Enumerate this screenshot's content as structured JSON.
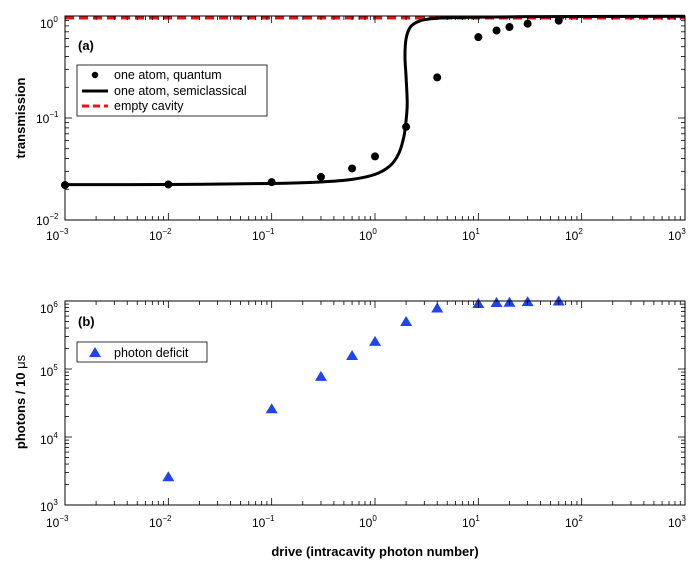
{
  "chart_data": [
    {
      "type": "line",
      "panel_label": "(a)",
      "ylabel": "transmission",
      "xscale": "log",
      "yscale": "log",
      "xlim": [
        0.001,
        1000
      ],
      "ylim": [
        0.01,
        1
      ],
      "x_ticks": [
        {
          "base": "10",
          "exp": "−3",
          "value": 0.001
        },
        {
          "base": "10",
          "exp": "−2",
          "value": 0.01
        },
        {
          "base": "10",
          "exp": "−1",
          "value": 0.1
        },
        {
          "base": "10",
          "exp": "0",
          "value": 1
        },
        {
          "base": "10",
          "exp": "1",
          "value": 10
        },
        {
          "base": "10",
          "exp": "2",
          "value": 100
        },
        {
          "base": "10",
          "exp": "3",
          "value": 1000
        }
      ],
      "y_ticks": [
        {
          "base": "10",
          "exp": "−2",
          "value": 0.01
        },
        {
          "base": "10",
          "exp": "−1",
          "value": 0.1
        },
        {
          "base": "10",
          "exp": "0",
          "value": 1
        }
      ],
      "legend_position": "upper-left",
      "series": [
        {
          "name": "one atom, quantum",
          "kind": "scatter",
          "marker": "circle",
          "color": "#000000",
          "x": [
            0.001,
            0.01,
            0.1,
            0.3,
            0.6,
            1,
            2,
            4,
            10,
            15,
            20,
            30,
            60
          ],
          "y": [
            0.022,
            0.0223,
            0.0235,
            0.0265,
            0.032,
            0.042,
            0.082,
            0.25,
            0.62,
            0.72,
            0.78,
            0.84,
            0.9
          ]
        },
        {
          "name": "one atom, semiclassical",
          "kind": "line",
          "color": "#000000",
          "x": [
            0.001,
            0.01,
            0.1,
            0.3,
            0.6,
            1.0,
            1.4,
            1.7,
            1.9,
            2.0,
            2.05,
            2.0,
            1.95,
            2.0,
            2.2,
            2.6,
            3.2,
            5,
            10,
            30,
            100,
            1000
          ],
          "y": [
            0.0222,
            0.0223,
            0.0228,
            0.0236,
            0.025,
            0.028,
            0.034,
            0.045,
            0.065,
            0.095,
            0.14,
            0.25,
            0.4,
            0.6,
            0.78,
            0.88,
            0.93,
            0.96,
            0.975,
            0.985,
            0.99,
            0.995
          ]
        },
        {
          "name": "empty cavity",
          "kind": "line",
          "style": "dashed",
          "color": "#ee1111",
          "x": [
            0.001,
            1000
          ],
          "y": [
            0.955,
            0.955
          ]
        }
      ]
    },
    {
      "type": "scatter",
      "panel_label": "(b)",
      "ylabel_text": "photons / 10 ",
      "ylabel_unit": "μs",
      "xlabel": "drive (intracavity photon number)",
      "xscale": "log",
      "yscale": "log",
      "xlim": [
        0.001,
        1000
      ],
      "ylim": [
        1000,
        1000000
      ],
      "x_ticks": [
        {
          "base": "10",
          "exp": "−3",
          "value": 0.001
        },
        {
          "base": "10",
          "exp": "−2",
          "value": 0.01
        },
        {
          "base": "10",
          "exp": "−1",
          "value": 0.1
        },
        {
          "base": "10",
          "exp": "0",
          "value": 1
        },
        {
          "base": "10",
          "exp": "1",
          "value": 10
        },
        {
          "base": "10",
          "exp": "2",
          "value": 100
        },
        {
          "base": "10",
          "exp": "3",
          "value": 1000
        }
      ],
      "y_ticks": [
        {
          "base": "10",
          "exp": "3",
          "value": 1000
        },
        {
          "base": "10",
          "exp": "4",
          "value": 10000
        },
        {
          "base": "10",
          "exp": "5",
          "value": 100000
        },
        {
          "base": "10",
          "exp": "6",
          "value": 1000000
        }
      ],
      "legend_position": "upper-left",
      "series": [
        {
          "name": "photon deficit",
          "kind": "scatter",
          "marker": "triangle",
          "color": "#2244ee",
          "x": [
            0.01,
            0.1,
            0.3,
            0.6,
            1,
            2,
            4,
            10,
            15,
            20,
            30,
            60
          ],
          "y": [
            2600,
            26000,
            78000,
            158000,
            255000,
            500000,
            790000,
            920000,
            950000,
            960000,
            980000,
            1000000
          ]
        }
      ]
    }
  ]
}
